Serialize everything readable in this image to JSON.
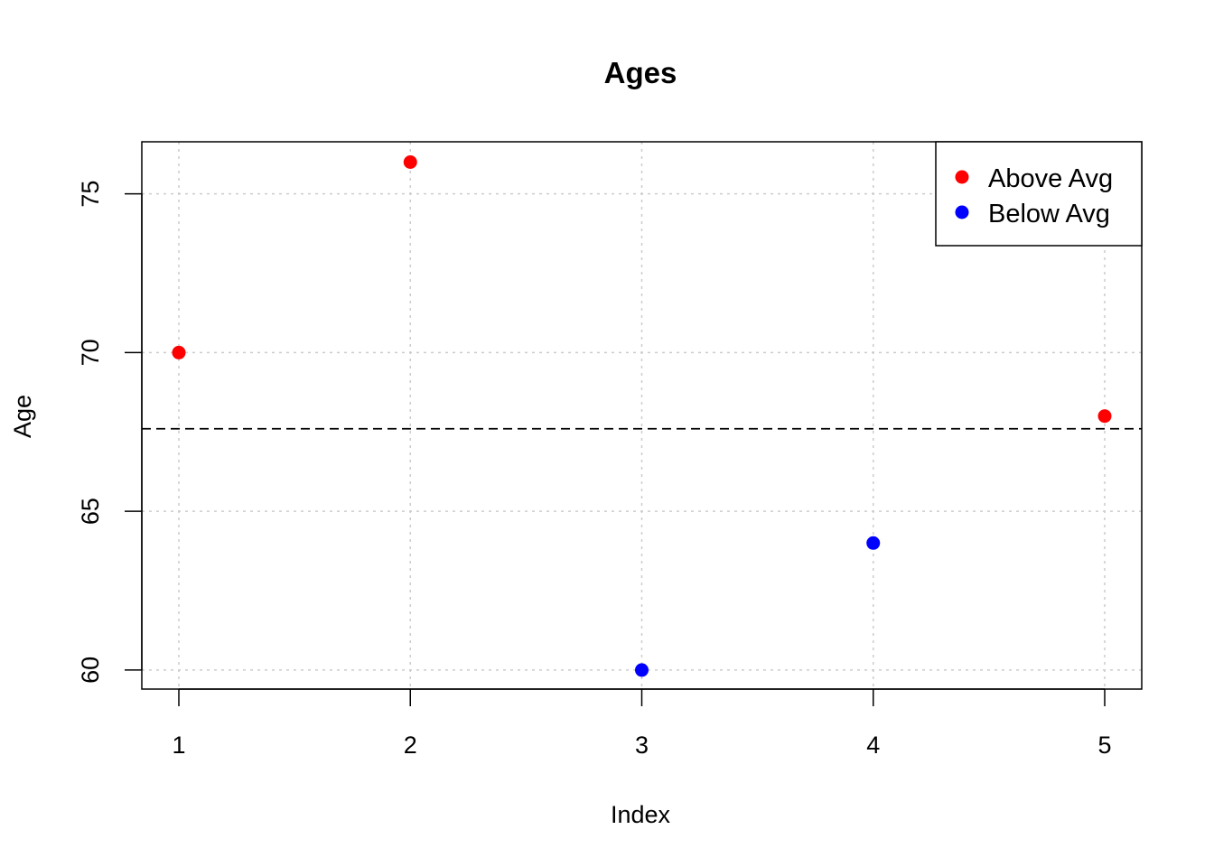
{
  "chart_data": {
    "type": "scatter",
    "title": "Ages",
    "xlabel": "Index",
    "ylabel": "Age",
    "xlim": [
      0.84,
      5.16
    ],
    "ylim": [
      59.4,
      76.64
    ],
    "xticks": [
      1,
      2,
      3,
      4,
      5
    ],
    "xtick_labels": [
      "1",
      "2",
      "3",
      "4",
      "5"
    ],
    "yticks": [
      60,
      65,
      70,
      75
    ],
    "ytick_labels": [
      "60",
      "65",
      "70",
      "75"
    ],
    "grid": true,
    "x": [
      1,
      2,
      3,
      4,
      5
    ],
    "y": [
      70,
      76,
      60,
      64,
      68
    ],
    "point_group": [
      "Above Avg",
      "Above Avg",
      "Below Avg",
      "Below Avg",
      "Above Avg"
    ],
    "reference_line": {
      "y": 67.6,
      "style": "dashed"
    },
    "legend": {
      "position": "top-right",
      "entries": [
        {
          "label": "Above Avg",
          "color": "#ff0000"
        },
        {
          "label": "Below Avg",
          "color": "#0000ff"
        }
      ]
    },
    "colors": {
      "Above Avg": "#ff0000",
      "Below Avg": "#0000ff",
      "grid": "#cccccc",
      "axis": "#000000"
    }
  }
}
